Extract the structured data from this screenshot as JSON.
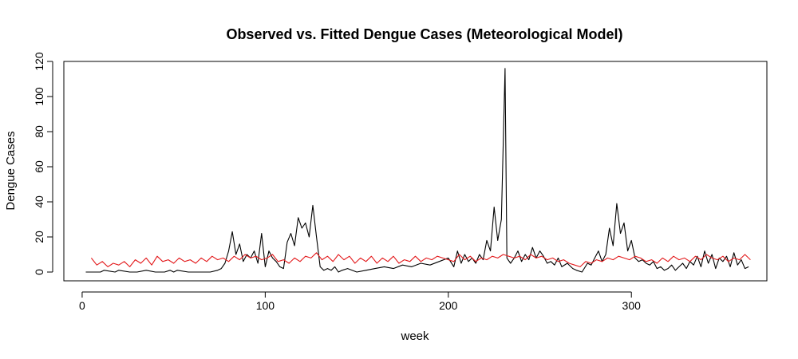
{
  "chart_data": {
    "type": "line",
    "title": "Observed vs. Fitted Dengue Cases (Meteorological Model)",
    "xlabel": "week",
    "ylabel": "Dengue Cases",
    "xlim": [
      -10,
      374
    ],
    "ylim": [
      -5,
      120
    ],
    "xticks": [
      0,
      100,
      200,
      300
    ],
    "yticks": [
      0,
      20,
      40,
      60,
      80,
      100,
      120
    ],
    "grid": false,
    "legend": "none",
    "series": [
      {
        "role": "observed",
        "color": "#000000",
        "x": [
          2,
          10,
          12,
          18,
          20,
          26,
          30,
          35,
          40,
          45,
          48,
          50,
          52,
          58,
          60,
          65,
          70,
          74,
          76,
          78,
          80,
          82,
          84,
          86,
          88,
          90,
          92,
          94,
          96,
          98,
          100,
          102,
          104,
          106,
          108,
          110,
          112,
          114,
          116,
          118,
          120,
          122,
          124,
          126,
          128,
          130,
          132,
          134,
          136,
          138,
          140,
          142,
          145,
          150,
          155,
          160,
          165,
          170,
          175,
          180,
          185,
          190,
          195,
          200,
          203,
          205,
          207,
          209,
          211,
          213,
          215,
          217,
          219,
          221,
          223,
          225,
          227,
          229,
          231,
          232,
          234,
          236,
          238,
          240,
          242,
          244,
          246,
          248,
          250,
          252,
          254,
          256,
          258,
          260,
          262,
          265,
          268,
          270,
          273,
          276,
          278,
          280,
          282,
          284,
          286,
          288,
          290,
          292,
          294,
          296,
          298,
          300,
          302,
          304,
          306,
          308,
          310,
          312,
          314,
          316,
          318,
          320,
          322,
          324,
          326,
          328,
          330,
          332,
          334,
          336,
          338,
          340,
          342,
          344,
          346,
          348,
          350,
          352,
          354,
          356,
          358,
          360,
          362,
          364
        ],
        "y": [
          0,
          0,
          1,
          0,
          1,
          0,
          0,
          1,
          0,
          0,
          1,
          0,
          1,
          0,
          0,
          0,
          0,
          1,
          2,
          5,
          12,
          23,
          10,
          16,
          6,
          10,
          8,
          12,
          5,
          22,
          3,
          12,
          8,
          6,
          3,
          2,
          17,
          22,
          15,
          31,
          25,
          28,
          20,
          38,
          20,
          3,
          1,
          2,
          1,
          3,
          0,
          1,
          2,
          0,
          1,
          2,
          3,
          2,
          4,
          3,
          5,
          4,
          6,
          8,
          3,
          12,
          5,
          10,
          6,
          8,
          5,
          10,
          7,
          18,
          12,
          37,
          18,
          30,
          116,
          8,
          5,
          8,
          12,
          6,
          10,
          7,
          14,
          8,
          12,
          9,
          5,
          6,
          4,
          8,
          3,
          5,
          2,
          1,
          0,
          5,
          4,
          8,
          12,
          6,
          10,
          25,
          15,
          39,
          22,
          28,
          12,
          18,
          8,
          6,
          7,
          5,
          4,
          6,
          2,
          3,
          1,
          2,
          4,
          1,
          3,
          5,
          2,
          6,
          4,
          9,
          3,
          12,
          5,
          10,
          2,
          8,
          6,
          9,
          3,
          11,
          4,
          7,
          2,
          3
        ]
      },
      {
        "role": "fitted",
        "color": "#e31a1c",
        "x": [
          5,
          8,
          11,
          14,
          17,
          20,
          23,
          26,
          29,
          32,
          35,
          38,
          41,
          44,
          47,
          50,
          53,
          56,
          59,
          62,
          65,
          68,
          71,
          74,
          77,
          80,
          83,
          86,
          89,
          92,
          95,
          98,
          101,
          104,
          107,
          110,
          113,
          116,
          119,
          122,
          125,
          128,
          131,
          134,
          137,
          140,
          143,
          146,
          149,
          152,
          155,
          158,
          161,
          164,
          167,
          170,
          173,
          176,
          179,
          182,
          185,
          188,
          191,
          194,
          197,
          200,
          203,
          206,
          209,
          212,
          215,
          218,
          221,
          224,
          227,
          230,
          233,
          236,
          239,
          242,
          245,
          248,
          251,
          254,
          257,
          260,
          263,
          266,
          269,
          272,
          275,
          278,
          281,
          284,
          287,
          290,
          293,
          296,
          299,
          302,
          305,
          308,
          311,
          314,
          317,
          320,
          323,
          326,
          329,
          332,
          335,
          338,
          341,
          344,
          347,
          350,
          353,
          356,
          359,
          362,
          365
        ],
        "y": [
          8,
          4,
          6,
          3,
          5,
          4,
          6,
          3,
          7,
          5,
          8,
          4,
          9,
          6,
          7,
          5,
          8,
          6,
          7,
          5,
          8,
          6,
          9,
          7,
          8,
          6,
          9,
          7,
          10,
          8,
          9,
          7,
          8,
          10,
          6,
          7,
          5,
          8,
          6,
          9,
          8,
          11,
          7,
          9,
          6,
          10,
          7,
          9,
          5,
          8,
          6,
          9,
          5,
          8,
          6,
          9,
          5,
          7,
          6,
          9,
          6,
          8,
          7,
          9,
          8,
          7,
          6,
          10,
          7,
          9,
          6,
          8,
          7,
          9,
          8,
          10,
          9,
          8,
          9,
          7,
          10,
          8,
          9,
          7,
          8,
          6,
          7,
          5,
          4,
          3,
          6,
          5,
          7,
          6,
          8,
          7,
          9,
          8,
          7,
          9,
          8,
          6,
          7,
          5,
          8,
          6,
          9,
          7,
          8,
          6,
          9,
          7,
          10,
          8,
          7,
          9,
          6,
          8,
          7,
          10,
          7
        ]
      }
    ]
  }
}
